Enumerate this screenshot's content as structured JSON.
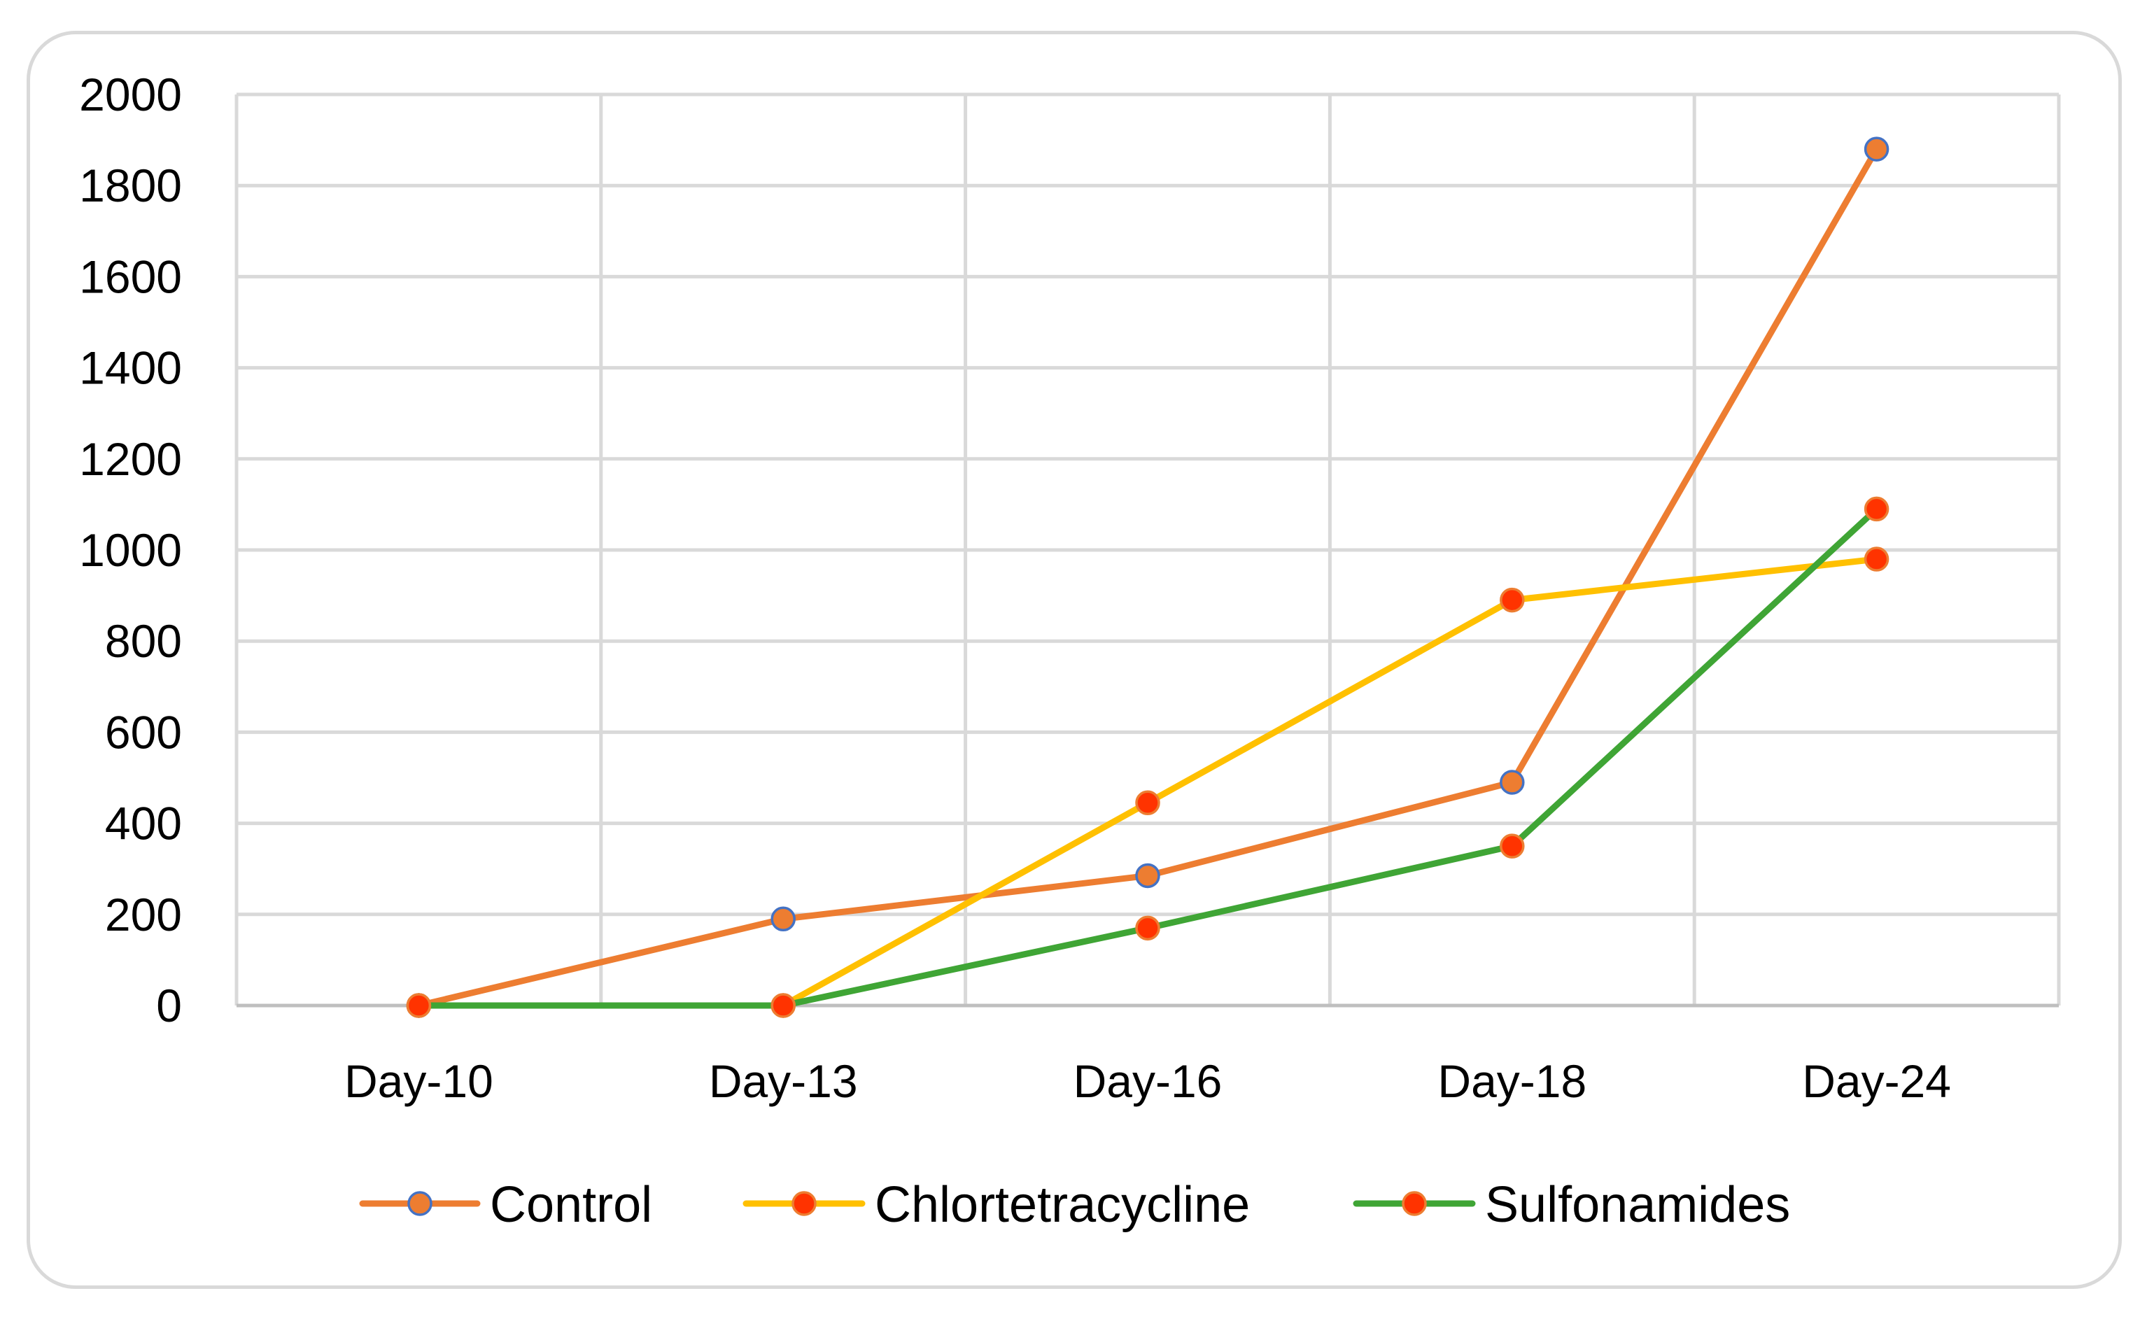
{
  "chart_data": {
    "type": "line",
    "title": "",
    "xlabel": "",
    "ylabel": "",
    "categories": [
      "Day-10",
      "Day-13",
      "Day-16",
      "Day-18",
      "Day-24"
    ],
    "ylim": [
      0,
      2000
    ],
    "yticks": [
      0,
      200,
      400,
      600,
      800,
      1000,
      1200,
      1400,
      1600,
      1800,
      2000
    ],
    "grid": true,
    "legend_position": "bottom",
    "series": [
      {
        "name": "Control",
        "values": [
          0,
          190,
          285,
          490,
          1880
        ],
        "line_color": "#ED7D31",
        "marker_fill": "#ED7D31",
        "marker_edge": "#4472C4"
      },
      {
        "name": "Chlortetracycline",
        "values": [
          0,
          0,
          445,
          890,
          980
        ],
        "line_color": "#FFC000",
        "marker_fill": "#FF3300",
        "marker_edge": "#ED7D31"
      },
      {
        "name": "Sulfonamides",
        "values": [
          0,
          0,
          170,
          350,
          1090
        ],
        "line_color": "#3FA535",
        "marker_fill": "#FF3300",
        "marker_edge": "#ED7D31"
      }
    ]
  }
}
